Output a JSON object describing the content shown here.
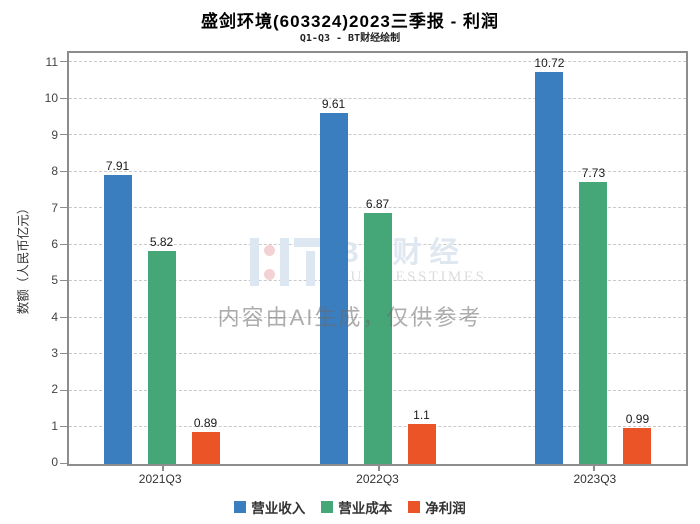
{
  "title": "盛剑环境(603324)2023三季报 - 利润",
  "subtitle": "Q1-Q3 - BT财经绘制",
  "y_axis_title": "数额（人民币亿元）",
  "watermark": {
    "bt_text": "BT财经",
    "bt_subtext": "BUSINESSTIMES",
    "ai_notice": "内容由AI生成，仅供参考"
  },
  "chart_data": {
    "type": "bar",
    "title": "盛剑环境(603324)2023三季报 - 利润",
    "subtitle": "Q1-Q3 - BT财经绘制",
    "categories": [
      "2021Q3",
      "2022Q3",
      "2023Q3"
    ],
    "series": [
      {
        "name": "营业收入",
        "color": "#3a7ebf",
        "values": [
          7.91,
          9.61,
          10.72
        ]
      },
      {
        "name": "营业成本",
        "color": "#45a678",
        "values": [
          5.82,
          6.87,
          7.73
        ]
      },
      {
        "name": "净利润",
        "color": "#ea5426",
        "values": [
          0.89,
          1.1,
          0.99
        ]
      }
    ],
    "xlabel": "",
    "ylabel": "数额（人民币亿元）",
    "ylim": [
      0,
      11.25
    ],
    "yticks": [
      0,
      1,
      2,
      3,
      4,
      5,
      6,
      7,
      8,
      9,
      10,
      11
    ],
    "grid": true,
    "grid_style": "dashed",
    "legend_position": "bottom",
    "bar_value_labels": true
  }
}
